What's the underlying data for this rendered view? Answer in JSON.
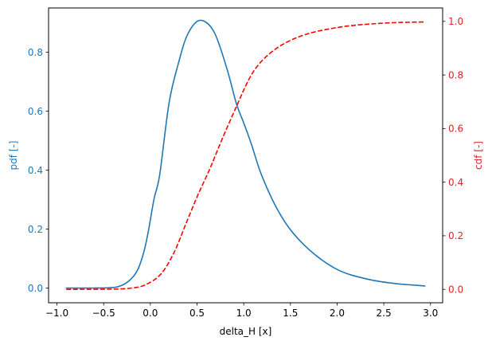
{
  "chart_data": {
    "type": "line",
    "title": "",
    "xlabel": "delta_H [x]",
    "ylabel": "pdf [-]",
    "ylabel_right": "cdf [-]",
    "xlim": [
      -1.09,
      3.13
    ],
    "ylim": [
      -0.05,
      0.95
    ],
    "ylim_right": [
      -0.05,
      1.05
    ],
    "grid": false,
    "legend": null,
    "x_ticks": [
      -1.0,
      -0.5,
      0.0,
      0.5,
      1.0,
      1.5,
      2.0,
      2.5,
      3.0
    ],
    "x_tick_labels": [
      "−1.0",
      "−0.5",
      "0.0",
      "0.5",
      "1.0",
      "1.5",
      "2.0",
      "2.5",
      "3.0"
    ],
    "y_ticks": [
      0.0,
      0.2,
      0.4,
      0.6,
      0.8
    ],
    "y_tick_labels": [
      "0.0",
      "0.2",
      "0.4",
      "0.6",
      "0.8"
    ],
    "y_ticks_right": [
      0.0,
      0.2,
      0.4,
      0.6,
      0.8,
      1.0
    ],
    "y_tick_labels_right": [
      "0.0",
      "0.2",
      "0.4",
      "0.6",
      "0.8",
      "1.0"
    ],
    "series": [
      {
        "name": "pdf",
        "axis": "left",
        "color": "#1f77b4",
        "style": "solid",
        "x": [
          -0.9,
          -0.6,
          -0.45,
          -0.34,
          -0.23,
          -0.14,
          -0.07,
          -0.02,
          0.04,
          0.1,
          0.2,
          0.3,
          0.4,
          0.53,
          0.68,
          0.82,
          0.92,
          1.0,
          1.08,
          1.19,
          1.36,
          1.53,
          1.76,
          2.02,
          2.3,
          2.6,
          2.94
        ],
        "values": [
          0.0,
          0.0,
          0.001,
          0.005,
          0.024,
          0.059,
          0.122,
          0.195,
          0.303,
          0.384,
          0.627,
          0.762,
          0.861,
          0.908,
          0.87,
          0.744,
          0.627,
          0.56,
          0.49,
          0.384,
          0.267,
          0.186,
          0.114,
          0.06,
          0.032,
          0.016,
          0.007
        ]
      },
      {
        "name": "cdf",
        "axis": "right",
        "color": "#ff0000",
        "style": "dashed",
        "x": [
          -0.9,
          -0.4,
          -0.2,
          -0.06,
          0.11,
          0.25,
          0.38,
          0.51,
          0.64,
          0.77,
          0.92,
          1.05,
          1.16,
          1.31,
          1.5,
          1.73,
          2.02,
          2.27,
          2.6,
          2.94
        ],
        "values": [
          0.0,
          0.001,
          0.005,
          0.016,
          0.056,
          0.135,
          0.244,
          0.353,
          0.452,
          0.562,
          0.681,
          0.78,
          0.839,
          0.889,
          0.929,
          0.958,
          0.978,
          0.988,
          0.995,
          0.998
        ]
      }
    ]
  },
  "colors": {
    "left_axis": "#1f77b4",
    "right_axis": "#d62728",
    "frame": "#000000",
    "text": "#000000"
  }
}
